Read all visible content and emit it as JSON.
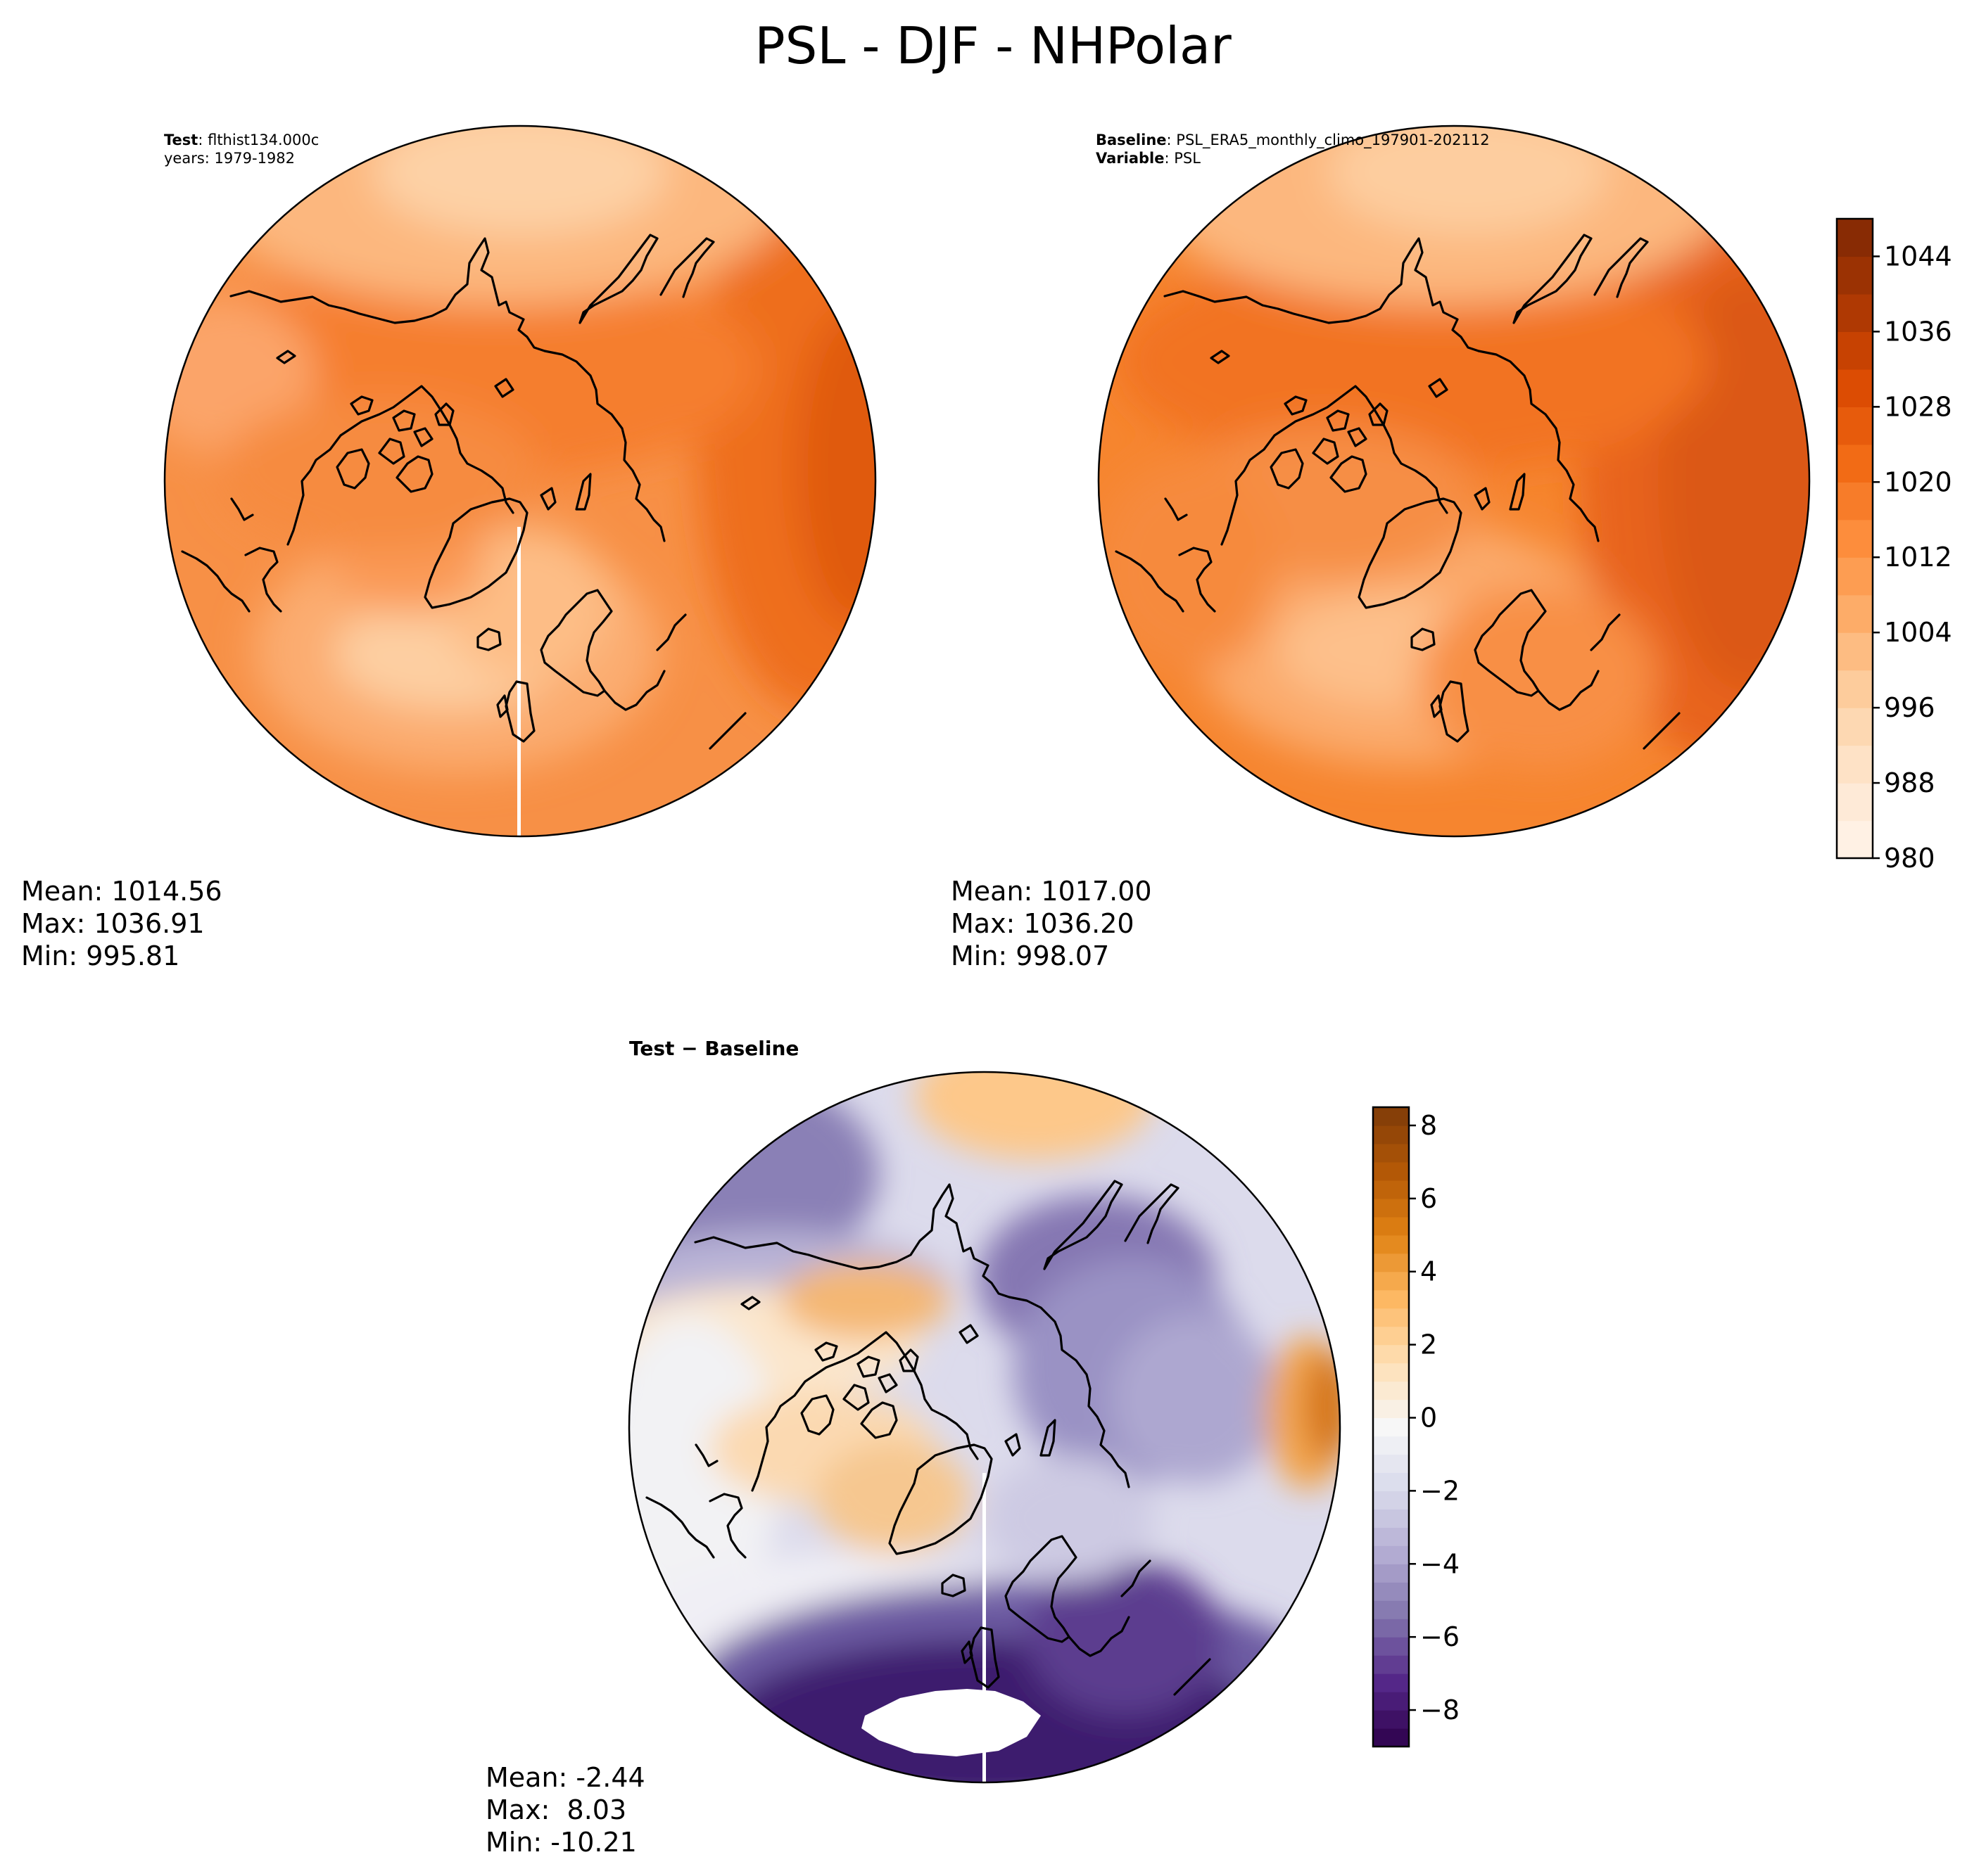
{
  "figure": {
    "title": "PSL - DJF - NHPolar"
  },
  "panels": {
    "test": {
      "label_key": "Test",
      "label_value": "flthist134.000c",
      "years": "years: 1979-1982",
      "mean": "Mean: 1014.56",
      "max": "Max: 1036.91",
      "min": "Min: 995.81"
    },
    "baseline": {
      "label_key": "Baseline",
      "label_value": "PSL_ERA5_monthly_climo_197901-202112",
      "variable_key": "Variable",
      "variable_value": "PSL",
      "mean": "Mean: 1017.00",
      "max": "Max: 1036.20",
      "min": "Min: 998.07"
    },
    "diff": {
      "title": "Test − Baseline",
      "mean": "Mean: -2.44",
      "max": "Max:  8.03",
      "min": "Min: -10.21"
    }
  },
  "colorbars": {
    "abs": {
      "colormap": "Oranges",
      "min": 980,
      "max": 1048,
      "ticks": [
        "980",
        "988",
        "996",
        "1004",
        "1012",
        "1020",
        "1028",
        "1036",
        "1044"
      ],
      "colors": [
        "#fff5eb",
        "#fee6ce",
        "#fdd0a2",
        "#fdae6b",
        "#fd8d3c",
        "#f16913",
        "#d94801",
        "#a63603",
        "#7f2704"
      ]
    },
    "diff": {
      "colormap": "PuOr_r",
      "min": -9,
      "max": 8.5,
      "ticks": [
        "8",
        "6",
        "4",
        "2",
        "0",
        "−2",
        "−4",
        "−6",
        "−8"
      ],
      "colors": [
        "#2d004b",
        "#542788",
        "#8073ac",
        "#b2abd2",
        "#d8daeb",
        "#f7f7f7",
        "#fee0b6",
        "#fdb863",
        "#e08214",
        "#b35806",
        "#7f3b08"
      ]
    }
  }
}
